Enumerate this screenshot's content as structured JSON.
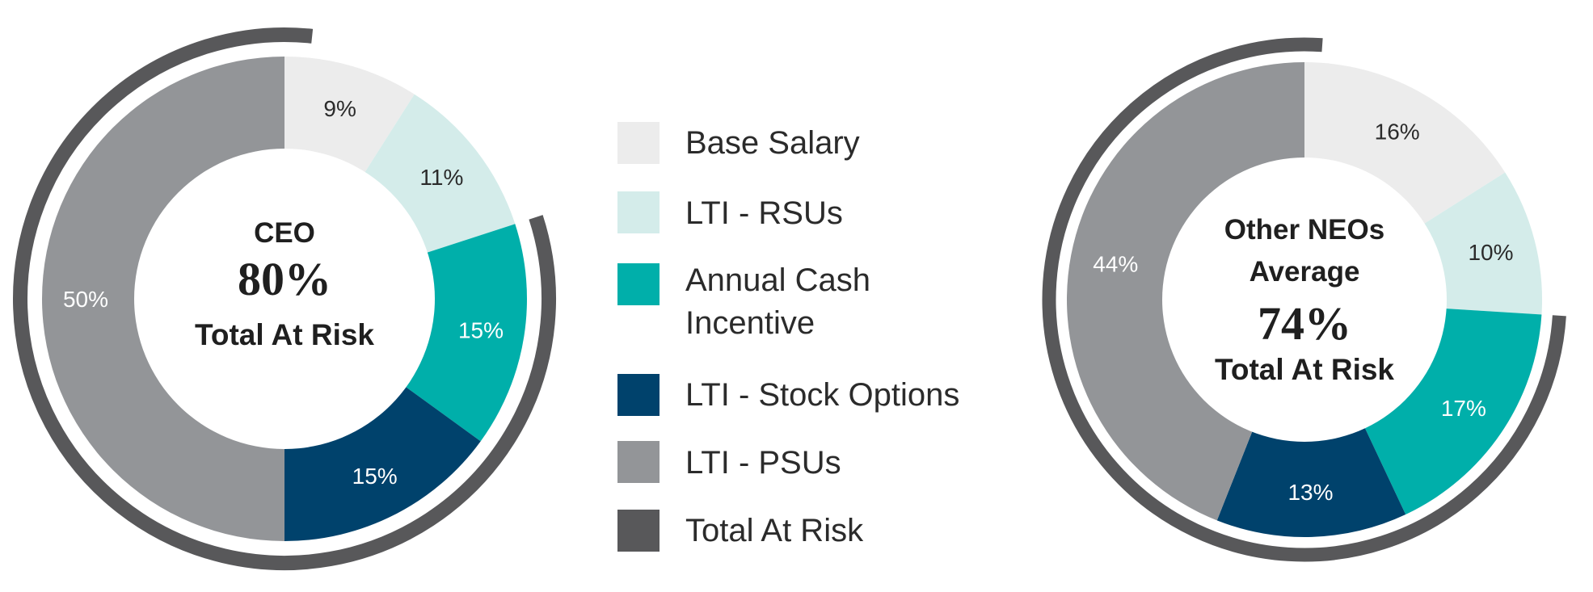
{
  "chart_data": [
    {
      "type": "pie",
      "variant": "donut",
      "title_line1": "CEO",
      "total_at_risk_pct": "80%",
      "subtitle": "Total At Risk",
      "categories": [
        "Base Salary",
        "LTI - RSUs",
        "Annual Cash Incentive",
        "LTI - Stock Options",
        "LTI - PSUs"
      ],
      "values": [
        9,
        11,
        15,
        15,
        50
      ],
      "labels": [
        "9%",
        "11%",
        "15%",
        "15%",
        "50%"
      ],
      "total_at_risk_arc": 80
    },
    {
      "type": "pie",
      "variant": "donut",
      "title_line1": "Other NEOs",
      "title_line2": "Average",
      "total_at_risk_pct": "74%",
      "subtitle": "Total At Risk",
      "categories": [
        "Base Salary",
        "LTI - RSUs",
        "Annual Cash Incentive",
        "LTI - Stock Options",
        "LTI - PSUs"
      ],
      "values": [
        16,
        10,
        17,
        13,
        44
      ],
      "labels": [
        "16%",
        "10%",
        "17%",
        "13%",
        "44%"
      ],
      "total_at_risk_arc": 74
    }
  ],
  "legend": [
    {
      "label": "Base Salary",
      "color": "#ececec"
    },
    {
      "label": "LTI - RSUs",
      "color": "#d4ecea"
    },
    {
      "label": "Annual Cash Incentive",
      "line1": "Annual Cash",
      "line2": "Incentive",
      "color": "#00afaa"
    },
    {
      "label": "LTI - Stock Options",
      "color": "#00426c"
    },
    {
      "label": "LTI - PSUs",
      "color": "#939598"
    },
    {
      "label": "Total At Risk",
      "color": "#58585a"
    }
  ],
  "colors": {
    "base_salary": "#ececec",
    "rsus": "#d4ecea",
    "cash": "#00afaa",
    "options": "#00426c",
    "psus": "#939598",
    "total_risk": "#58585a",
    "label_dark": "#2b2b2b",
    "label_light": "#ffffff"
  }
}
